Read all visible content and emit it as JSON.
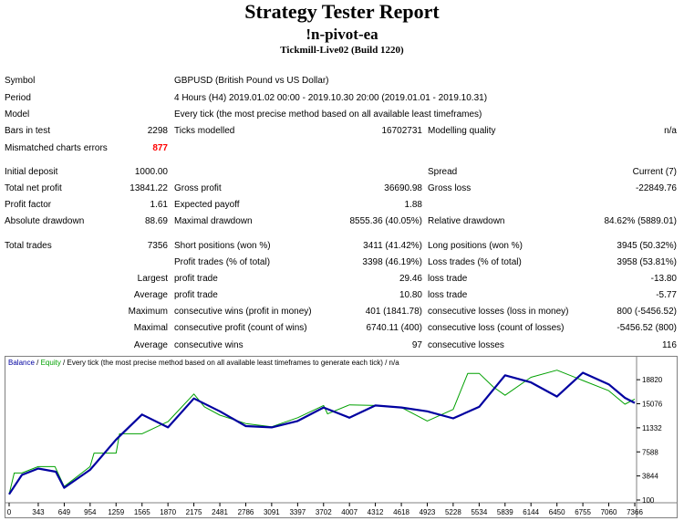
{
  "header": {
    "title": "Strategy Tester Report",
    "ea_name": "!n-pivot-ea",
    "server": "Tickmill-Live02 (Build 1220)"
  },
  "info": {
    "symbol_label": "Symbol",
    "symbol_value": "GBPUSD (British Pound vs US Dollar)",
    "period_label": "Period",
    "period_value": "4 Hours (H4) 2019.01.02 00:00 - 2019.10.30 20:00 (2019.01.01 - 2019.10.31)",
    "model_label": "Model",
    "model_value": "Every tick (the most precise method based on all available least timeframes)",
    "bars_label": "Bars in test",
    "bars_value": "2298",
    "ticks_label": "Ticks modelled",
    "ticks_value": "16702731",
    "quality_label": "Modelling quality",
    "quality_value": "n/a",
    "mismatch_label": "Mismatched charts errors",
    "mismatch_value": "877"
  },
  "stats": {
    "initial_deposit_label": "Initial deposit",
    "initial_deposit_value": "1000.00",
    "spread_label": "Spread",
    "spread_value": "Current (7)",
    "net_profit_label": "Total net profit",
    "net_profit_value": "13841.22",
    "gross_profit_label": "Gross profit",
    "gross_profit_value": "36690.98",
    "gross_loss_label": "Gross loss",
    "gross_loss_value": "-22849.76",
    "profit_factor_label": "Profit factor",
    "profit_factor_value": "1.61",
    "expected_payoff_label": "Expected payoff",
    "expected_payoff_value": "1.88",
    "abs_dd_label": "Absolute drawdown",
    "abs_dd_value": "88.69",
    "max_dd_label": "Maximal drawdown",
    "max_dd_value": "8555.36 (40.05%)",
    "rel_dd_label": "Relative drawdown",
    "rel_dd_value": "84.62% (5889.01)",
    "total_trades_label": "Total trades",
    "total_trades_value": "7356",
    "short_label": "Short positions (won %)",
    "short_value": "3411 (41.42%)",
    "long_label": "Long positions (won %)",
    "long_value": "3945 (50.32%)",
    "profit_trades_label": "Profit trades (% of total)",
    "profit_trades_value": "3398 (46.19%)",
    "loss_trades_label": "Loss trades (% of total)",
    "loss_trades_value": "3958 (53.81%)",
    "largest_label": "Largest",
    "largest_profit_label": "profit trade",
    "largest_profit_value": "29.46",
    "largest_loss_label": "loss trade",
    "largest_loss_value": "-13.80",
    "average_label": "Average",
    "average_profit_label": "profit trade",
    "average_profit_value": "10.80",
    "average_loss_label": "loss trade",
    "average_loss_value": "-5.77",
    "maximum_label": "Maximum",
    "max_cons_wins_label": "consecutive wins (profit in money)",
    "max_cons_wins_value": "401 (1841.78)",
    "max_cons_losses_label": "consecutive losses (loss in money)",
    "max_cons_losses_value": "800 (-5456.52)",
    "maximal_label": "Maximal",
    "maximal_cons_profit_label": "consecutive profit (count of wins)",
    "maximal_cons_profit_value": "6740.11 (400)",
    "maximal_cons_loss_label": "consecutive loss (count of losses)",
    "maximal_cons_loss_value": "-5456.52 (800)",
    "average2_label": "Average",
    "avg_cons_wins_label": "consecutive wins",
    "avg_cons_wins_value": "97",
    "avg_cons_losses_label": "consecutive losses",
    "avg_cons_losses_value": "116"
  },
  "chart_legend": {
    "balance": "Balance",
    "sep1": " / ",
    "equity": "Equity",
    "rest": " / Every tick (the most precise method based on all available least timeframes to generate each tick) / n/a"
  },
  "colors": {
    "balance": "#0000a0",
    "equity": "#00a000",
    "error": "#ff0000"
  },
  "chart_data": {
    "type": "line",
    "title": "",
    "xlabel": "",
    "ylabel": "",
    "x_ticks": [
      0,
      343,
      649,
      954,
      1259,
      1565,
      1870,
      2175,
      2481,
      2786,
      3091,
      3397,
      3702,
      4007,
      4312,
      4618,
      4923,
      5228,
      5534,
      5839,
      6144,
      6450,
      6755,
      7060,
      7366
    ],
    "y_ticks": [
      100,
      3844,
      7588,
      11332,
      15076,
      18820
    ],
    "xlim": [
      0,
      7366
    ],
    "ylim": [
      100,
      20400
    ],
    "grid": false,
    "legend": "top-left",
    "series": [
      {
        "name": "Balance",
        "x": [
          0,
          150,
          343,
          550,
          649,
          954,
          1259,
          1565,
          1870,
          2175,
          2481,
          2786,
          3091,
          3397,
          3702,
          4007,
          4312,
          4618,
          4923,
          5228,
          5534,
          5839,
          6144,
          6450,
          6755,
          7060,
          7250,
          7366
        ],
        "y": [
          1000,
          4000,
          5000,
          4500,
          2000,
          4800,
          9500,
          13400,
          11400,
          15900,
          13900,
          11600,
          11400,
          12400,
          14500,
          12900,
          14800,
          14500,
          13900,
          12800,
          14600,
          19500,
          18400,
          16200,
          19900,
          18100,
          16000,
          15200
        ]
      },
      {
        "name": "Equity",
        "x": [
          0,
          60,
          150,
          343,
          540,
          649,
          954,
          1000,
          1259,
          1300,
          1565,
          1870,
          2175,
          2300,
          2481,
          2786,
          3091,
          3397,
          3702,
          3750,
          4007,
          4312,
          4618,
          4923,
          5228,
          5400,
          5534,
          5700,
          5839,
          6144,
          6450,
          6755,
          7060,
          7250,
          7366
        ],
        "y": [
          1000,
          4300,
          4300,
          5300,
          5300,
          2200,
          5300,
          7400,
          7400,
          10400,
          10400,
          12300,
          16600,
          14600,
          13300,
          12000,
          11500,
          12900,
          14800,
          13500,
          14900,
          14800,
          14500,
          12400,
          14200,
          19800,
          19800,
          17700,
          16400,
          19200,
          20300,
          18700,
          17100,
          15000,
          15800
        ]
      }
    ]
  }
}
